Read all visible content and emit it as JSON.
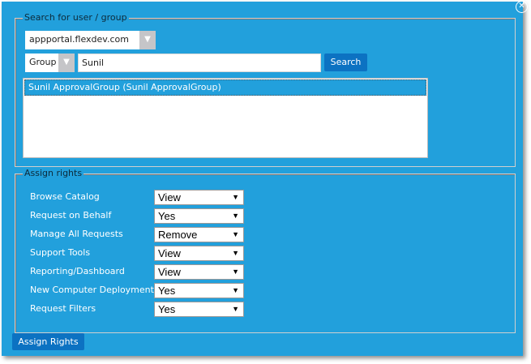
{
  "search": {
    "legend": "Search for user / group",
    "domain": "appportal.flexdev.com",
    "type": "Group",
    "query": "Sunil",
    "search_label": "Search",
    "results": [
      "Sunil ApprovalGroup (Sunil ApprovalGroup)"
    ]
  },
  "rights": {
    "legend": "Assign rights",
    "items": [
      {
        "label": "Browse Catalog",
        "value": "View"
      },
      {
        "label": "Request on Behalf",
        "value": "Yes"
      },
      {
        "label": "Manage All Requests",
        "value": "Remove"
      },
      {
        "label": "Support Tools",
        "value": "View"
      },
      {
        "label": "Reporting/Dashboard",
        "value": "View"
      },
      {
        "label": "New Computer Deployment",
        "value": "Yes"
      },
      {
        "label": "Request Filters",
        "value": "Yes"
      }
    ]
  },
  "assign_label": "Assign Rights",
  "close_icon": "close-icon",
  "colors": {
    "background": "#22a0dc",
    "button": "#0c72c2"
  }
}
